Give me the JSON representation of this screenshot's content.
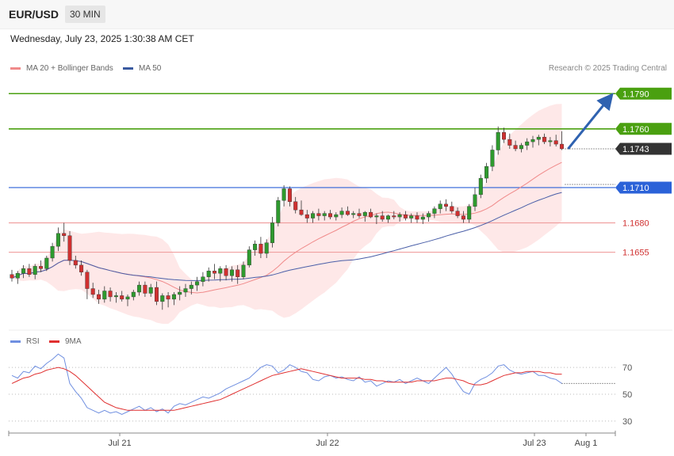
{
  "header": {
    "symbol": "EUR/USD",
    "interval": "30 MIN",
    "datetime": "Wednesday, July 23, 2025 1:30:38 AM CET"
  },
  "legend": {
    "ma20": "MA 20 + Bollinger Bands",
    "ma50": "MA 50",
    "credit": "Research © 2025 Trading Central"
  },
  "rsi_legend": {
    "rsi": "RSI",
    "ma9": "9MA"
  },
  "colors": {
    "bullish": "#2e9a2e",
    "bearish": "#d03030",
    "ma20": "#f08a8a",
    "ma50": "#4a5fa8",
    "band": "#fde0e0",
    "resistance": "#4aa010",
    "pivot": "#2b62d8",
    "support": "#f0a0a0",
    "rsi": "#6f8fe0",
    "rsi_ma": "#e03030",
    "arrow": "#2f62b0"
  },
  "chart_data": [
    {
      "type": "candlestick",
      "title": "EUR/USD",
      "ylim": [
        1.159,
        1.1805
      ],
      "x_labels": [
        "Jul 21",
        "Jul 22",
        "Jul 23",
        "Aug 1"
      ],
      "levels": [
        {
          "value": 1.179,
          "label": "1.1790",
          "kind": "resistance"
        },
        {
          "value": 1.176,
          "label": "1.1760",
          "kind": "resistance"
        },
        {
          "value": 1.1743,
          "label": "1.1743",
          "kind": "last"
        },
        {
          "value": 1.171,
          "label": "1.1710",
          "kind": "pivot"
        },
        {
          "value": 1.168,
          "label": "1.1680",
          "kind": "support"
        },
        {
          "value": 1.1655,
          "label": "1.1655",
          "kind": "support"
        }
      ],
      "target_arrow": {
        "from": 1.1743,
        "to": 1.179
      },
      "ohlc": [
        [
          1.1636,
          1.164,
          1.163,
          1.1633
        ],
        [
          1.1633,
          1.1639,
          1.1628,
          1.1637
        ],
        [
          1.1637,
          1.1644,
          1.1633,
          1.1641
        ],
        [
          1.1641,
          1.1645,
          1.1634,
          1.1636
        ],
        [
          1.1636,
          1.1645,
          1.1632,
          1.1643
        ],
        [
          1.1643,
          1.1648,
          1.1638,
          1.1641
        ],
        [
          1.1641,
          1.1652,
          1.1639,
          1.165
        ],
        [
          1.165,
          1.1663,
          1.1647,
          1.166
        ],
        [
          1.166,
          1.1676,
          1.1656,
          1.1671
        ],
        [
          1.1671,
          1.168,
          1.1664,
          1.1669
        ],
        [
          1.1669,
          1.1673,
          1.1644,
          1.1648
        ],
        [
          1.1648,
          1.1652,
          1.1641,
          1.1644
        ],
        [
          1.1644,
          1.1648,
          1.1635,
          1.1638
        ],
        [
          1.1638,
          1.164,
          1.1615,
          1.1624
        ],
        [
          1.1624,
          1.1629,
          1.1616,
          1.1619
        ],
        [
          1.1619,
          1.1623,
          1.1611,
          1.1615
        ],
        [
          1.1615,
          1.1626,
          1.1612,
          1.1622
        ],
        [
          1.1622,
          1.1625,
          1.1613,
          1.1617
        ],
        [
          1.1617,
          1.1621,
          1.1612,
          1.1618
        ],
        [
          1.1618,
          1.1622,
          1.1613,
          1.1615
        ],
        [
          1.1615,
          1.1619,
          1.1609,
          1.1617
        ],
        [
          1.1617,
          1.1623,
          1.1614,
          1.1621
        ],
        [
          1.1621,
          1.163,
          1.1618,
          1.1627
        ],
        [
          1.1627,
          1.163,
          1.1617,
          1.162
        ],
        [
          1.162,
          1.1628,
          1.1617,
          1.1625
        ],
        [
          1.1625,
          1.163,
          1.161,
          1.1613
        ],
        [
          1.1613,
          1.162,
          1.1606,
          1.1618
        ],
        [
          1.1618,
          1.1621,
          1.1608,
          1.1615
        ],
        [
          1.1615,
          1.1621,
          1.161,
          1.1619
        ],
        [
          1.1619,
          1.1626,
          1.1614,
          1.1621
        ],
        [
          1.1621,
          1.1628,
          1.1617,
          1.1624
        ],
        [
          1.1624,
          1.163,
          1.1619,
          1.1627
        ],
        [
          1.1627,
          1.1634,
          1.1622,
          1.163
        ],
        [
          1.163,
          1.1638,
          1.1626,
          1.1634
        ],
        [
          1.1634,
          1.1642,
          1.163,
          1.1639
        ],
        [
          1.1639,
          1.1645,
          1.1632,
          1.1637
        ],
        [
          1.1637,
          1.1643,
          1.163,
          1.1641
        ],
        [
          1.1641,
          1.1644,
          1.1631,
          1.1635
        ],
        [
          1.1635,
          1.1643,
          1.163,
          1.164
        ],
        [
          1.164,
          1.1644,
          1.1628,
          1.1634
        ],
        [
          1.1634,
          1.1647,
          1.1632,
          1.1644
        ],
        [
          1.1644,
          1.166,
          1.1642,
          1.1657
        ],
        [
          1.1657,
          1.1665,
          1.1652,
          1.1662
        ],
        [
          1.1662,
          1.1668,
          1.165,
          1.1654
        ],
        [
          1.1654,
          1.1666,
          1.165,
          1.1663
        ],
        [
          1.1663,
          1.1685,
          1.1659,
          1.168
        ],
        [
          1.168,
          1.1702,
          1.1677,
          1.1699
        ],
        [
          1.1699,
          1.1712,
          1.1694,
          1.1709
        ],
        [
          1.1709,
          1.1711,
          1.1694,
          1.1698
        ],
        [
          1.1698,
          1.1702,
          1.1688,
          1.1691
        ],
        [
          1.1691,
          1.1699,
          1.1686,
          1.1687
        ],
        [
          1.1687,
          1.1691,
          1.168,
          1.1684
        ],
        [
          1.1684,
          1.169,
          1.168,
          1.1688
        ],
        [
          1.1688,
          1.1692,
          1.1682,
          1.1686
        ],
        [
          1.1686,
          1.169,
          1.1682,
          1.1688
        ],
        [
          1.1688,
          1.1691,
          1.1683,
          1.1685
        ],
        [
          1.1685,
          1.1689,
          1.1682,
          1.1687
        ],
        [
          1.1687,
          1.1693,
          1.1684,
          1.169
        ],
        [
          1.169,
          1.1694,
          1.1686,
          1.1687
        ],
        [
          1.1687,
          1.169,
          1.1684,
          1.1688
        ],
        [
          1.1688,
          1.1692,
          1.1684,
          1.1686
        ],
        [
          1.1686,
          1.169,
          1.1681,
          1.1689
        ],
        [
          1.1689,
          1.1692,
          1.1684,
          1.1685
        ],
        [
          1.1685,
          1.1688,
          1.1679,
          1.1686
        ],
        [
          1.1686,
          1.169,
          1.1681,
          1.1683
        ],
        [
          1.1683,
          1.1687,
          1.168,
          1.1686
        ],
        [
          1.1686,
          1.169,
          1.1683,
          1.1685
        ],
        [
          1.1685,
          1.1689,
          1.1681,
          1.1687
        ],
        [
          1.1687,
          1.169,
          1.1682,
          1.1684
        ],
        [
          1.1684,
          1.1688,
          1.168,
          1.1686
        ],
        [
          1.1686,
          1.1689,
          1.168,
          1.1683
        ],
        [
          1.1683,
          1.1688,
          1.1679,
          1.1685
        ],
        [
          1.1685,
          1.169,
          1.1681,
          1.1688
        ],
        [
          1.1688,
          1.1694,
          1.1684,
          1.1692
        ],
        [
          1.1692,
          1.1699,
          1.1688,
          1.1696
        ],
        [
          1.1696,
          1.17,
          1.169,
          1.1694
        ],
        [
          1.1694,
          1.1698,
          1.1688,
          1.169
        ],
        [
          1.169,
          1.1693,
          1.1684,
          1.1686
        ],
        [
          1.1686,
          1.169,
          1.168,
          1.1683
        ],
        [
          1.1683,
          1.1696,
          1.168,
          1.1694
        ],
        [
          1.1694,
          1.171,
          1.169,
          1.1704
        ],
        [
          1.1704,
          1.1721,
          1.1701,
          1.1718
        ],
        [
          1.1718,
          1.1731,
          1.1714,
          1.1728
        ],
        [
          1.1728,
          1.1746,
          1.1724,
          1.1742
        ],
        [
          1.1742,
          1.1762,
          1.1738,
          1.1757
        ],
        [
          1.1757,
          1.1761,
          1.1748,
          1.1751
        ],
        [
          1.1751,
          1.1756,
          1.1743,
          1.1746
        ],
        [
          1.1746,
          1.175,
          1.1741,
          1.1743
        ],
        [
          1.1743,
          1.1748,
          1.174,
          1.1746
        ],
        [
          1.1746,
          1.1752,
          1.1742,
          1.1749
        ],
        [
          1.1749,
          1.1754,
          1.1744,
          1.1751
        ],
        [
          1.1751,
          1.1755,
          1.1746,
          1.1753
        ],
        [
          1.1753,
          1.1756,
          1.1747,
          1.1749
        ],
        [
          1.1749,
          1.1753,
          1.1745,
          1.175
        ],
        [
          1.175,
          1.1755,
          1.1745,
          1.1747
        ],
        [
          1.1747,
          1.1758,
          1.1742,
          1.1743
        ]
      ]
    },
    {
      "type": "line",
      "title": "RSI",
      "ylim": [
        24,
        86
      ],
      "y_ticks": [
        30,
        50,
        70
      ],
      "series": [
        {
          "name": "RSI",
          "values": [
            64,
            62,
            67,
            66,
            71,
            69,
            73,
            76,
            80,
            77,
            58,
            52,
            47,
            40,
            38,
            36,
            38,
            36,
            37,
            35,
            37,
            39,
            41,
            38,
            40,
            37,
            39,
            36,
            41,
            43,
            42,
            44,
            46,
            48,
            47,
            49,
            51,
            54,
            56,
            58,
            60,
            62,
            66,
            70,
            72,
            71,
            66,
            68,
            72,
            70,
            67,
            66,
            61,
            60,
            63,
            64,
            62,
            63,
            61,
            60,
            63,
            59,
            60,
            56,
            58,
            60,
            59,
            61,
            58,
            60,
            62,
            60,
            58,
            62,
            66,
            70,
            65,
            58,
            52,
            50,
            58,
            61,
            63,
            66,
            71,
            72,
            68,
            66,
            65,
            66,
            67,
            64,
            64,
            62,
            61,
            58
          ]
        },
        {
          "name": "9MA",
          "values": [
            58,
            60,
            62,
            63,
            65,
            66,
            68,
            69,
            70,
            69,
            67,
            64,
            60,
            56,
            52,
            48,
            44,
            42,
            40,
            39,
            38,
            38,
            38,
            38,
            38,
            38,
            38,
            38,
            38,
            39,
            40,
            41,
            42,
            43,
            44,
            45,
            46,
            48,
            50,
            52,
            54,
            56,
            58,
            60,
            62,
            64,
            65,
            66,
            67,
            68,
            69,
            68,
            67,
            66,
            65,
            64,
            63,
            62,
            62,
            62,
            62,
            61,
            61,
            60,
            60,
            59,
            59,
            59,
            59,
            59,
            60,
            60,
            60,
            60,
            61,
            62,
            62,
            61,
            60,
            58,
            57,
            57,
            58,
            60,
            62,
            64,
            65,
            66,
            66,
            67,
            67,
            67,
            66,
            66,
            65,
            65
          ]
        }
      ]
    }
  ]
}
